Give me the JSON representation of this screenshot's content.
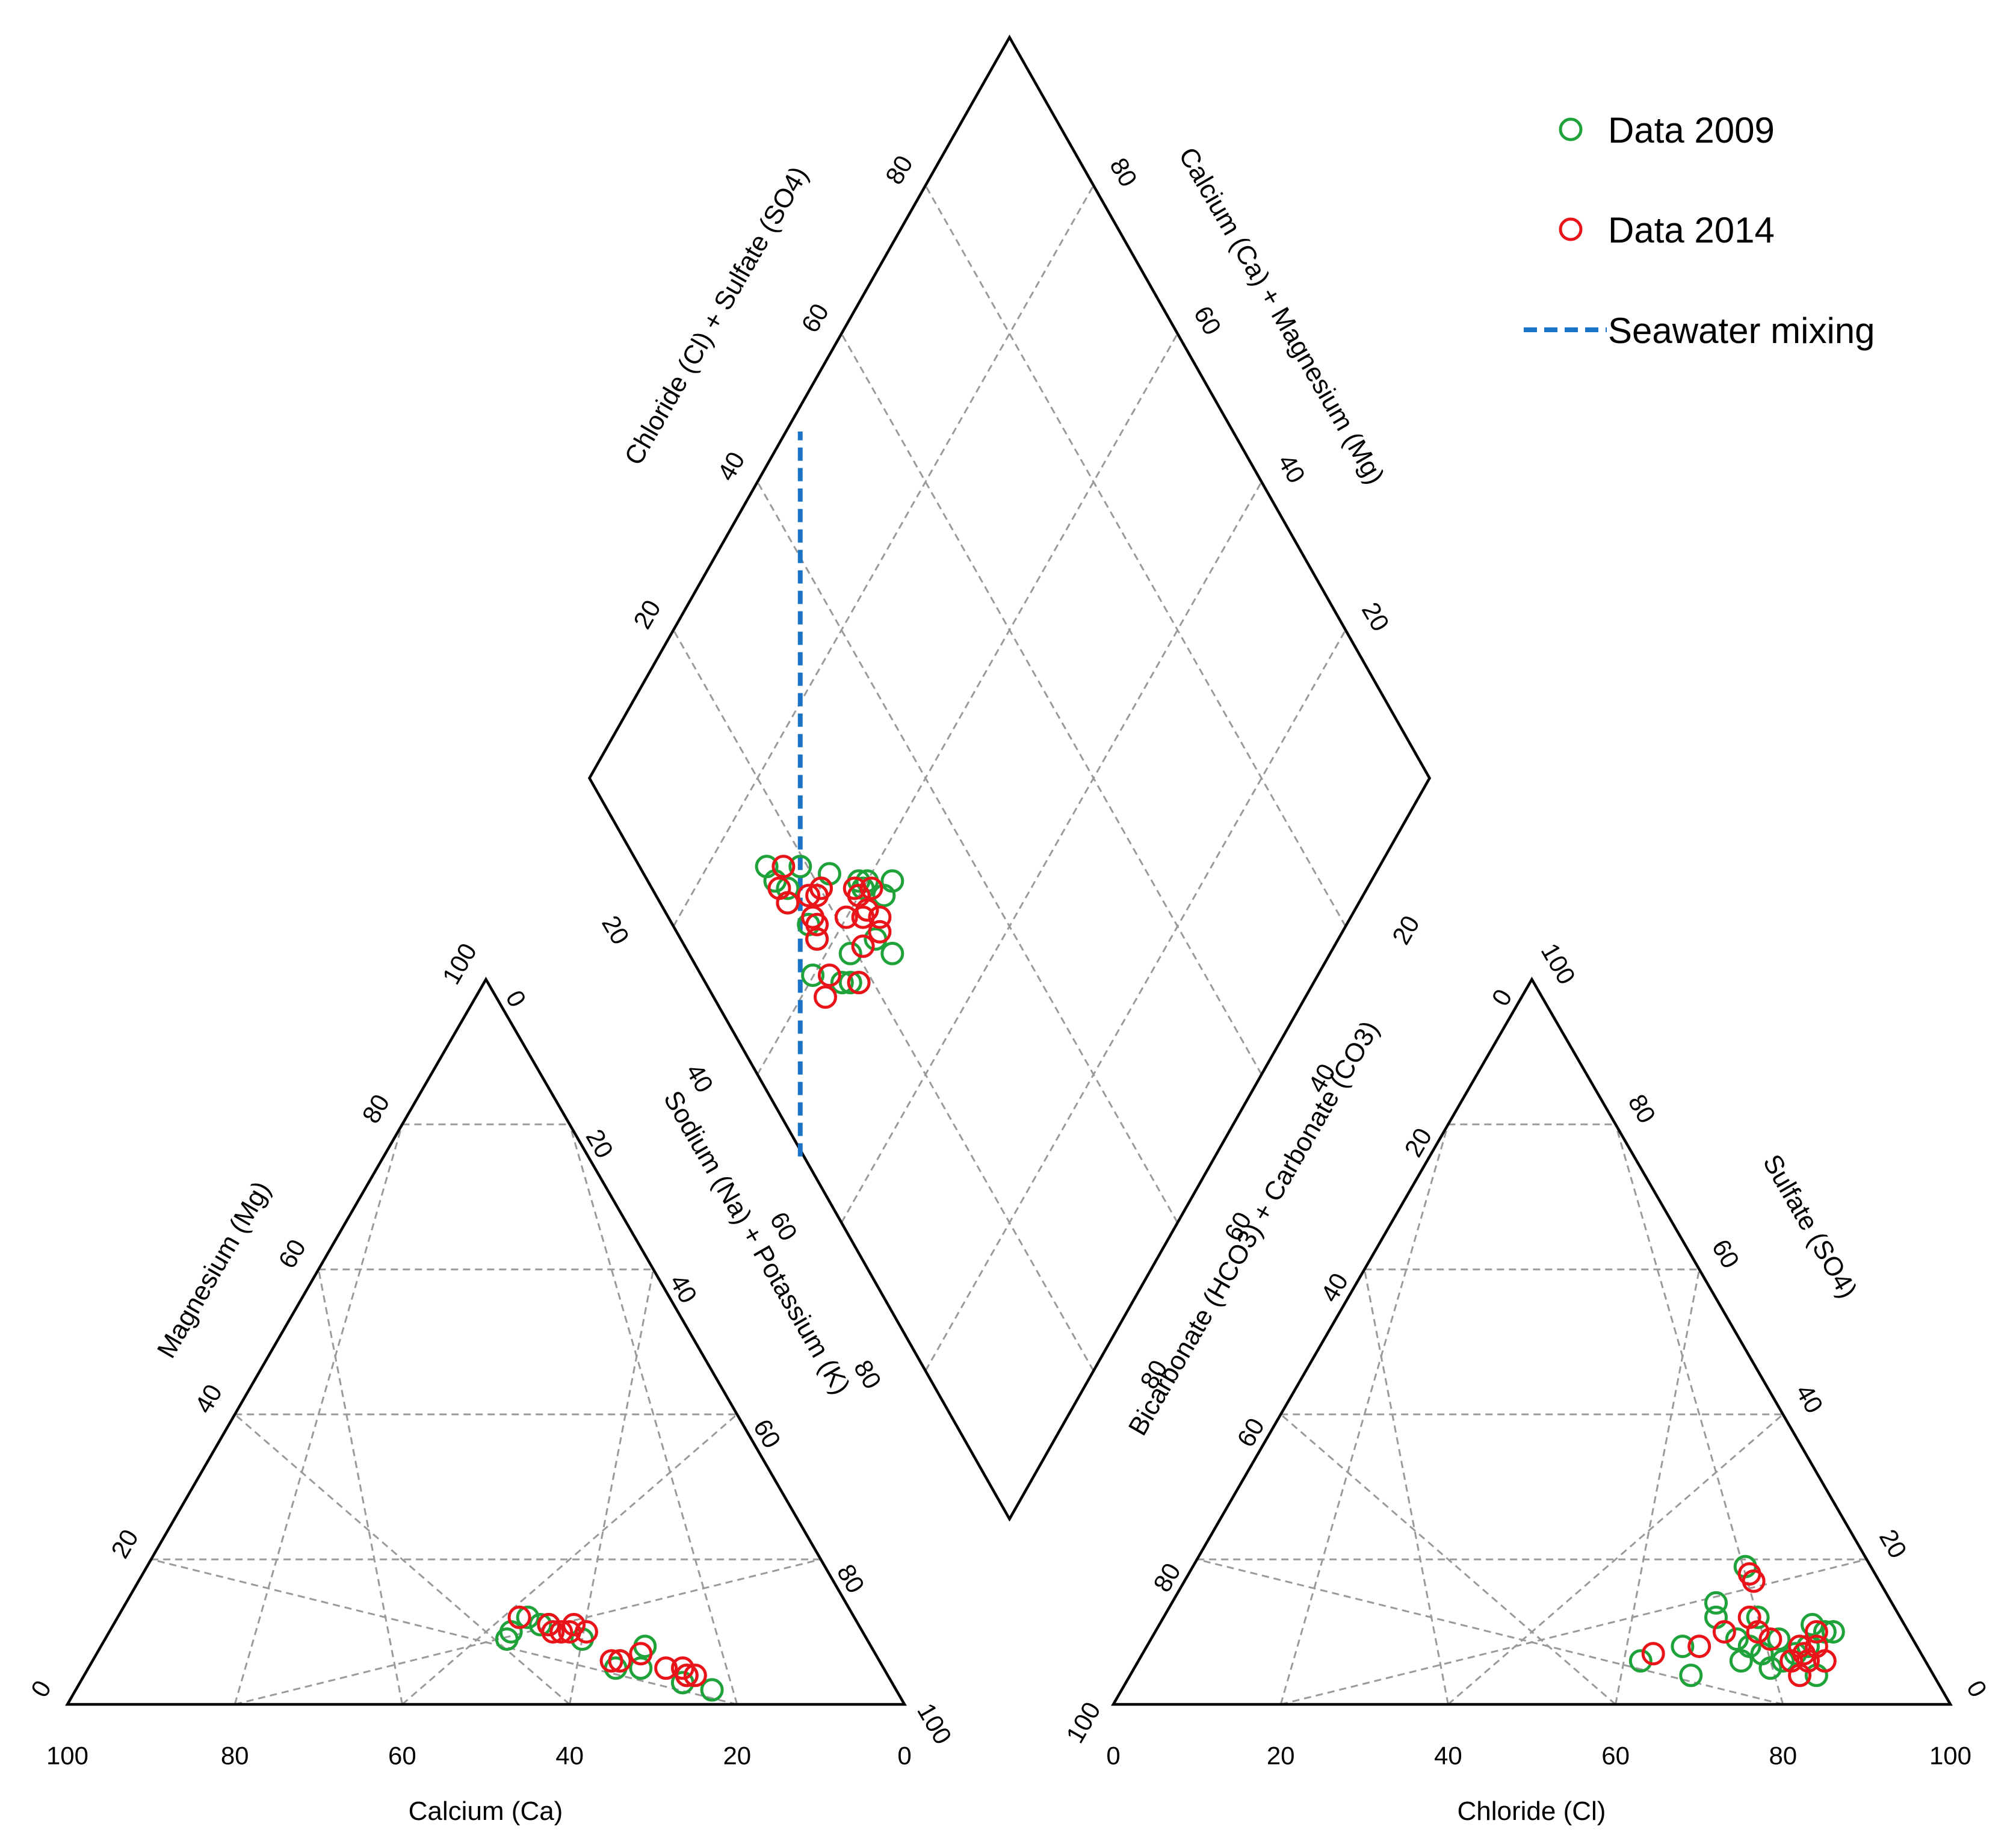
{
  "chart_data": {
    "type": "scatter",
    "subtype": "piper-diagram",
    "grid": true,
    "legend_position": "top-right",
    "series": [
      {
        "name": "Data 2009",
        "color": "#1fa23a",
        "marker": "open-circle"
      },
      {
        "name": "Data 2014",
        "color": "#e8141a",
        "marker": "open-circle"
      }
    ],
    "mixing_line": {
      "name": "Seawater mixing",
      "color": "#1a73c4",
      "style": "dashed",
      "from": {
        "cl_so4": 50,
        "ca_mg": 0
      },
      "to": {
        "cl_so4": 100,
        "ca_mg": 50
      }
    },
    "ticks": [
      "0",
      "20",
      "40",
      "60",
      "80",
      "100"
    ],
    "cation_triangle": {
      "xlabel": "Calcium (Ca)",
      "left_label": "Magnesium (Mg)",
      "right_label": "Sodium (Na) + Potassium (K)",
      "axes": [
        "Ca",
        "Mg",
        "Na+K"
      ],
      "points_2009": [
        [
          43,
          9,
          48
        ],
        [
          42,
          10,
          48
        ],
        [
          34,
          9,
          57
        ],
        [
          39,
          12,
          49
        ],
        [
          37,
          11,
          52
        ],
        [
          38,
          11,
          51
        ],
        [
          31,
          6,
          63
        ],
        [
          29,
          5,
          66
        ],
        [
          25,
          3,
          72
        ],
        [
          24,
          4,
          72
        ],
        [
          27,
          8,
          65
        ],
        [
          32,
          5,
          63
        ],
        [
          37,
          11,
          52
        ],
        [
          22,
          2,
          76
        ]
      ],
      "points_2014": [
        [
          40,
          12,
          48
        ],
        [
          37,
          10,
          53
        ],
        [
          37,
          11,
          52
        ],
        [
          35,
          10,
          55
        ],
        [
          34,
          11,
          55
        ],
        [
          32,
          6,
          62
        ],
        [
          31,
          6,
          63
        ],
        [
          28,
          7,
          65
        ],
        [
          26,
          5,
          69
        ],
        [
          24,
          5,
          71
        ],
        [
          24,
          4,
          72
        ],
        [
          23,
          4,
          73
        ],
        [
          36,
          10,
          54
        ],
        [
          33,
          10,
          57
        ]
      ]
    },
    "anion_triangle": {
      "xlabel": "Chloride (Cl)",
      "left_label": "Bicarbonate (HCO3) + Carbonate (CO3)",
      "right_label": "Sulfate (SO4)",
      "axes": [
        "Cl",
        "SO4",
        "HCO3+CO3"
      ],
      "points_2009": [
        [
          60,
          6,
          34
        ],
        [
          65,
          14,
          21
        ],
        [
          67,
          4,
          29
        ],
        [
          66,
          12,
          22
        ],
        [
          71,
          12,
          17
        ],
        [
          70,
          9,
          21
        ],
        [
          72,
          8,
          20
        ],
        [
          75,
          9,
          16
        ],
        [
          78,
          11,
          11
        ],
        [
          80,
          10,
          10
        ],
        [
          81,
          10,
          9
        ],
        [
          72,
          6,
          22
        ],
        [
          66,
          19,
          15
        ],
        [
          76,
          5,
          19
        ],
        [
          79,
          8,
          13
        ],
        [
          82,
          4,
          14
        ],
        [
          78,
          7,
          15
        ],
        [
          64,
          8,
          28
        ],
        [
          74,
          7,
          19
        ],
        [
          77,
          6,
          17
        ]
      ],
      "points_2014": [
        [
          61,
          7,
          32
        ],
        [
          67,
          18,
          15
        ],
        [
          68,
          17,
          15
        ],
        [
          70,
          12,
          18
        ],
        [
          68,
          10,
          22
        ],
        [
          74,
          9,
          17
        ],
        [
          78,
          8,
          14
        ],
        [
          78,
          6,
          16
        ],
        [
          80,
          8,
          12
        ],
        [
          80,
          4,
          16
        ],
        [
          66,
          8,
          26
        ],
        [
          82,
          6,
          12
        ],
        [
          72,
          10,
          18
        ],
        [
          79,
          10,
          11
        ],
        [
          79,
          7,
          14
        ],
        [
          80,
          6,
          14
        ]
      ]
    },
    "diamond": {
      "left_label": "Chloride (Cl) + Sulfate (SO4)",
      "right_label": "Calcium (Ca) + Magnesium (Mg)",
      "axes": [
        "Cl+SO4",
        "Ca+Mg"
      ],
      "points_2009": [
        [
          55,
          19
        ],
        [
          58,
          28
        ],
        [
          59,
          25
        ],
        [
          58,
          30
        ],
        [
          61,
          27
        ],
        [
          61,
          26
        ],
        [
          66,
          23
        ],
        [
          69,
          16
        ],
        [
          65,
          17
        ],
        [
          61,
          14
        ],
        [
          63,
          17
        ],
        [
          57,
          17
        ],
        [
          72,
          16
        ],
        [
          70,
          17
        ],
        [
          74,
          16
        ],
        [
          62,
          26
        ],
        [
          70,
          20
        ],
        [
          66,
          21
        ],
        [
          56,
          24
        ],
        [
          53,
          25
        ],
        [
          58,
          20
        ],
        [
          56,
          18
        ]
      ],
      "points_2014": [
        [
          55,
          19
        ],
        [
          59,
          25
        ],
        [
          56,
          25
        ],
        [
          60,
          27
        ],
        [
          61,
          25
        ],
        [
          59,
          24
        ],
        [
          61,
          22
        ],
        [
          57,
          22
        ],
        [
          65,
          18
        ],
        [
          66,
          21
        ],
        [
          64,
          18
        ],
        [
          63,
          17
        ],
        [
          66,
          20
        ],
        [
          71,
          16
        ],
        [
          69,
          16
        ],
        [
          67,
          19
        ],
        [
          58,
          14
        ],
        [
          59,
          16
        ],
        [
          72,
          18
        ],
        [
          62,
          25
        ],
        [
          57,
          26
        ]
      ]
    }
  }
}
